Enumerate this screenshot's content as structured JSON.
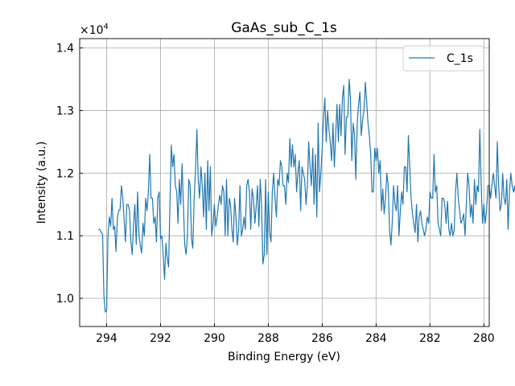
{
  "chart_data": {
    "type": "line",
    "title": "GaAs_sub_C_1s",
    "xlabel": "Binding Energy (eV)",
    "ylabel": "Intensity (a.u.)",
    "x_reversed": true,
    "xlim": [
      295.0,
      279.8
    ],
    "ylim": [
      9550,
      14150
    ],
    "xticks": [
      294,
      292,
      290,
      288,
      286,
      284,
      282,
      280
    ],
    "xtick_labels": [
      "294",
      "292",
      "290",
      "288",
      "286",
      "284",
      "282",
      "280"
    ],
    "yticks": [
      10000,
      11000,
      12000,
      13000,
      14000
    ],
    "ytick_labels": [
      "1.0",
      "1.1",
      "1.2",
      "1.3",
      "1.4"
    ],
    "y_offset_label": "×10",
    "y_offset_exponent": "4",
    "grid": true,
    "legend": "top-right",
    "series": [
      {
        "name": "C_1s",
        "color": "#1f77b4",
        "x_start": 294.3,
        "x_step": -0.05,
        "values": [
          11100,
          11100,
          11050,
          11020,
          10050,
          9780,
          9800,
          11000,
          11300,
          11150,
          11600,
          11100,
          11150,
          10750,
          11300,
          11400,
          11420,
          11800,
          11600,
          11250,
          10900,
          11500,
          11500,
          11400,
          10900,
          10700,
          11200,
          11500,
          10860,
          11700,
          11000,
          10850,
          10720,
          11200,
          11000,
          11600,
          11400,
          11700,
          12300,
          11600,
          11600,
          11200,
          11300,
          10900,
          11600,
          11700,
          10950,
          11000,
          10700,
          10300,
          10880,
          10650,
          10500,
          11500,
          12450,
          12100,
          12300,
          11800,
          11700,
          11200,
          11900,
          11500,
          12150,
          11500,
          10850,
          10700,
          11000,
          11900,
          11800,
          10950,
          10800,
          11600,
          12050,
          12700,
          11900,
          11600,
          12100,
          11800,
          11300,
          12000,
          11100,
          12200,
          11400,
          12100,
          11000,
          11200,
          11500,
          11150,
          11300,
          11500,
          11650,
          11500,
          11800,
          11700,
          11000,
          11900,
          11000,
          11600,
          11500,
          11100,
          10900,
          11600,
          11300,
          10850,
          11100,
          11800,
          11000,
          11100,
          11300,
          11100,
          11800,
          11900,
          11700,
          11100,
          11750,
          11600,
          11200,
          11450,
          11800,
          11150,
          11900,
          11500,
          10550,
          10700,
          11900,
          10700,
          11700,
          11050,
          10900,
          11700,
          12000,
          11600,
          11300,
          11900,
          11800,
          12200,
          12100,
          11800,
          11800,
          11500,
          12000,
          11850,
          12550,
          12100,
          12450,
          12100,
          12300,
          11700,
          12000,
          12200,
          11400,
          12100,
          12000,
          11900,
          11500,
          11800,
          12500,
          12100,
          11800,
          12400,
          11500,
          12300,
          11300,
          12800,
          11700,
          12000,
          12400,
          12900,
          13200,
          12500,
          13000,
          12700,
          12500,
          12200,
          12800,
          12100,
          12600,
          13100,
          12500,
          13100,
          12600,
          13200,
          13400,
          12300,
          12900,
          12900,
          13500,
          13200,
          12200,
          12800,
          12600,
          11900,
          12800,
          13100,
          13300,
          12600,
          12850,
          13000,
          13450,
          13150,
          12800,
          12600,
          12300,
          11700,
          11700,
          12400,
          12200,
          12400,
          12000,
          12200,
          11400,
          11750,
          11350,
          11600,
          12000,
          11800,
          11100,
          10850,
          11200,
          11800,
          11500,
          11400,
          11800,
          11000,
          11400,
          11700,
          11500,
          12100,
          12100,
          11700,
          12600,
          12100,
          11600,
          11350,
          11200,
          11050,
          11500,
          10900,
          11300,
          11400,
          11200,
          11100,
          11000,
          11100,
          11300,
          11200,
          11700,
          11600,
          11600,
          12300,
          11700,
          11800,
          11200,
          11100,
          11000,
          11600,
          11600,
          11500,
          11200,
          11550,
          11100,
          11000,
          11200,
          11000,
          11100,
          11700,
          12000,
          11600,
          11400,
          11200,
          11250,
          11350,
          11000,
          11500,
          12000,
          11800,
          11300,
          11500,
          11200,
          11900,
          11500,
          11800,
          11700,
          12700,
          11800,
          11200,
          11500,
          11200,
          11400,
          11800,
          11800,
          11600,
          11800,
          12000,
          11800,
          11600,
          12500,
          11800,
          11400,
          11500,
          12000,
          11600,
          11500,
          11900,
          11100,
          11700,
          12000,
          11800,
          11700,
          11800,
          11500,
          11600,
          11900,
          11400,
          11700,
          11600,
          11500,
          11800,
          11700,
          11300,
          11600,
          12200,
          11600,
          11800,
          12100,
          11800,
          11300,
          11700,
          11800,
          11200,
          11400,
          11800,
          11600,
          11700,
          11200,
          11800,
          11600,
          11700,
          12100,
          12400,
          12300,
          11800,
          11400,
          11600,
          11500,
          11200,
          11400,
          11700,
          11600,
          11500,
          11200,
          10700,
          11000,
          11000,
          11350,
          11050,
          11400
        ]
      }
    ]
  }
}
